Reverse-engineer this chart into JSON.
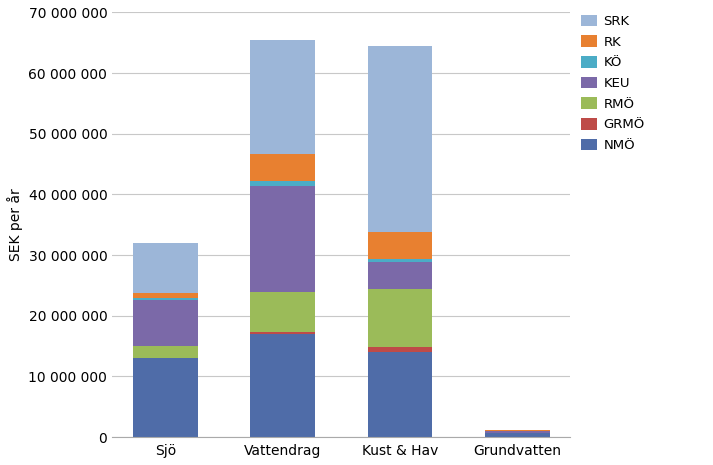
{
  "categories": [
    "Sjö",
    "Vattendrag",
    "Kust & Hav",
    "Grundvatten"
  ],
  "series": [
    {
      "label": "NMÖ",
      "color": "#4F6CA8",
      "values": [
        13000000,
        17000000,
        14000000,
        650000
      ]
    },
    {
      "label": "GRMÖ",
      "color": "#BE4B48",
      "values": [
        100000,
        400000,
        900000,
        0
      ]
    },
    {
      "label": "RMÖ",
      "color": "#9BBB59",
      "values": [
        2000000,
        6500000,
        9500000,
        100000
      ]
    },
    {
      "label": "KEU",
      "color": "#7B69A8",
      "values": [
        7500000,
        17500000,
        4500000,
        250000
      ]
    },
    {
      "label": "KÖ",
      "color": "#4BACC6",
      "values": [
        300000,
        800000,
        400000,
        50000
      ]
    },
    {
      "label": "RK",
      "color": "#E88030",
      "values": [
        800000,
        4500000,
        4500000,
        50000
      ]
    },
    {
      "label": "SRK",
      "color": "#9CB6D8",
      "values": [
        8300000,
        18800000,
        30600000,
        0
      ]
    }
  ],
  "ylabel": "SEK per år",
  "ylim": [
    0,
    70000000
  ],
  "ytick_step": 10000000,
  "background_color": "#ffffff",
  "grid_color": "#c8c8c8",
  "bar_width": 0.55,
  "legend_fontsize": 9.5,
  "tick_fontsize": 10,
  "ylabel_fontsize": 10
}
